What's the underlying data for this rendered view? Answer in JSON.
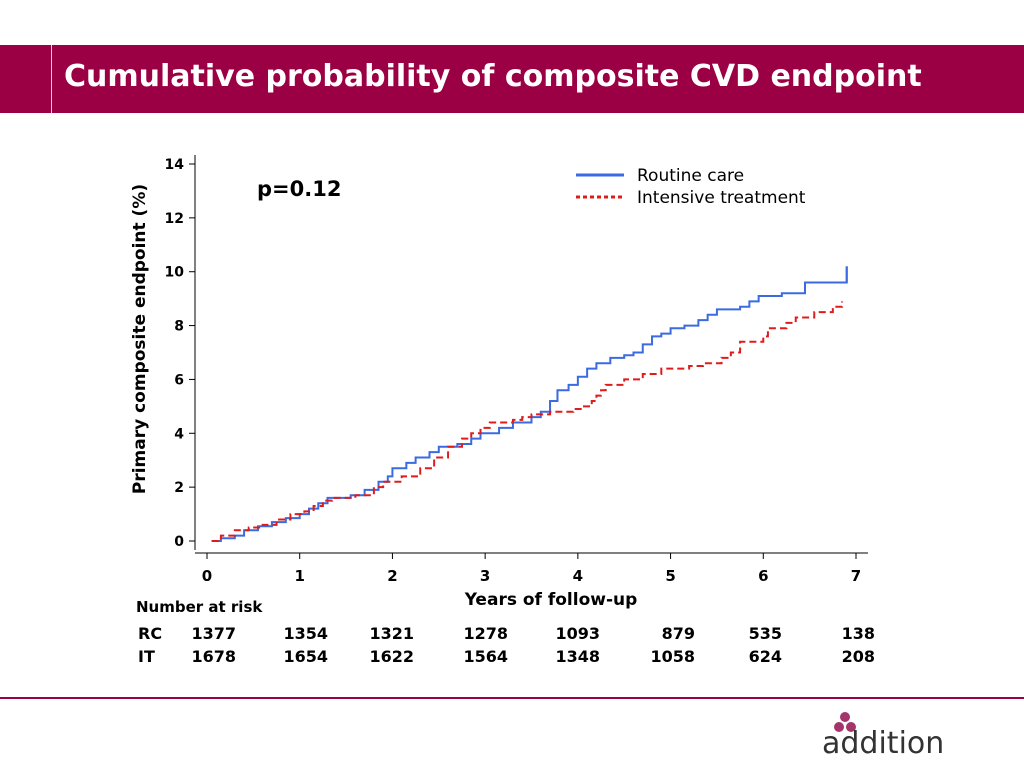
{
  "slide": {
    "title": "Cumulative probability of composite CVD endpoint"
  },
  "colors": {
    "title_bar": "#9b0045",
    "routine_care": "#3a6be0",
    "intensive_treatment": "#e01b1b",
    "logo_dots": "#a4346a"
  },
  "chart_data": {
    "type": "line",
    "subtype": "step (Kaplan-Meier cumulative incidence)",
    "xlabel": "Years of follow-up",
    "ylabel": "Primary composite endpoint (%)",
    "xlim": [
      0,
      7
    ],
    "ylim": [
      0,
      14
    ],
    "xticks": [
      0,
      1,
      2,
      3,
      4,
      5,
      6,
      7
    ],
    "yticks": [
      0,
      2,
      4,
      6,
      8,
      10,
      12,
      14
    ],
    "grid": false,
    "legend_position": "top-right",
    "annotation": "p=0.12",
    "series": [
      {
        "name": "Routine care",
        "style": "solid",
        "color": "#3a6be0",
        "points": [
          [
            0.05,
            0
          ],
          [
            0.15,
            0.1
          ],
          [
            0.3,
            0.2
          ],
          [
            0.4,
            0.4
          ],
          [
            0.55,
            0.55
          ],
          [
            0.7,
            0.7
          ],
          [
            0.85,
            0.85
          ],
          [
            1.0,
            1.0
          ],
          [
            1.1,
            1.2
          ],
          [
            1.2,
            1.4
          ],
          [
            1.3,
            1.6
          ],
          [
            1.55,
            1.7
          ],
          [
            1.7,
            1.9
          ],
          [
            1.85,
            2.2
          ],
          [
            1.95,
            2.4
          ],
          [
            2.0,
            2.7
          ],
          [
            2.15,
            2.9
          ],
          [
            2.25,
            3.1
          ],
          [
            2.4,
            3.3
          ],
          [
            2.5,
            3.5
          ],
          [
            2.7,
            3.6
          ],
          [
            2.85,
            3.8
          ],
          [
            2.95,
            4.0
          ],
          [
            3.15,
            4.2
          ],
          [
            3.3,
            4.4
          ],
          [
            3.5,
            4.6
          ],
          [
            3.6,
            4.8
          ],
          [
            3.7,
            5.2
          ],
          [
            3.78,
            5.6
          ],
          [
            3.9,
            5.8
          ],
          [
            4.0,
            6.1
          ],
          [
            4.1,
            6.4
          ],
          [
            4.2,
            6.6
          ],
          [
            4.35,
            6.8
          ],
          [
            4.5,
            6.9
          ],
          [
            4.6,
            7.0
          ],
          [
            4.7,
            7.3
          ],
          [
            4.8,
            7.6
          ],
          [
            4.9,
            7.7
          ],
          [
            5.0,
            7.9
          ],
          [
            5.15,
            8.0
          ],
          [
            5.3,
            8.2
          ],
          [
            5.4,
            8.4
          ],
          [
            5.5,
            8.6
          ],
          [
            5.75,
            8.7
          ],
          [
            5.85,
            8.9
          ],
          [
            5.95,
            9.1
          ],
          [
            6.2,
            9.2
          ],
          [
            6.45,
            9.6
          ],
          [
            6.9,
            10.2
          ]
        ]
      },
      {
        "name": "Intensive treatment",
        "style": "dashed",
        "color": "#e01b1b",
        "points": [
          [
            0.05,
            0
          ],
          [
            0.15,
            0.2
          ],
          [
            0.3,
            0.4
          ],
          [
            0.45,
            0.5
          ],
          [
            0.6,
            0.6
          ],
          [
            0.75,
            0.8
          ],
          [
            0.9,
            1.0
          ],
          [
            1.05,
            1.1
          ],
          [
            1.15,
            1.3
          ],
          [
            1.25,
            1.5
          ],
          [
            1.35,
            1.6
          ],
          [
            1.6,
            1.7
          ],
          [
            1.8,
            2.0
          ],
          [
            1.9,
            2.2
          ],
          [
            2.1,
            2.4
          ],
          [
            2.3,
            2.7
          ],
          [
            2.45,
            3.1
          ],
          [
            2.6,
            3.5
          ],
          [
            2.75,
            3.8
          ],
          [
            2.85,
            4.0
          ],
          [
            2.95,
            4.2
          ],
          [
            3.05,
            4.4
          ],
          [
            3.3,
            4.5
          ],
          [
            3.4,
            4.6
          ],
          [
            3.5,
            4.7
          ],
          [
            3.7,
            4.8
          ],
          [
            3.95,
            4.9
          ],
          [
            4.05,
            5.0
          ],
          [
            4.15,
            5.2
          ],
          [
            4.2,
            5.4
          ],
          [
            4.25,
            5.6
          ],
          [
            4.3,
            5.8
          ],
          [
            4.5,
            6.0
          ],
          [
            4.7,
            6.2
          ],
          [
            4.9,
            6.4
          ],
          [
            5.2,
            6.5
          ],
          [
            5.35,
            6.6
          ],
          [
            5.55,
            6.8
          ],
          [
            5.65,
            7.0
          ],
          [
            5.75,
            7.4
          ],
          [
            6.0,
            7.6
          ],
          [
            6.05,
            7.9
          ],
          [
            6.25,
            8.1
          ],
          [
            6.35,
            8.3
          ],
          [
            6.55,
            8.5
          ],
          [
            6.75,
            8.7
          ],
          [
            6.85,
            8.9
          ]
        ]
      }
    ]
  },
  "risk_table": {
    "title": "Number at risk",
    "rows": [
      {
        "label": "RC",
        "values": [
          "1377",
          "1354",
          "1321",
          "1278",
          "1093",
          "879",
          "535",
          "138"
        ]
      },
      {
        "label": "IT",
        "values": [
          "1678",
          "1654",
          "1622",
          "1564",
          "1348",
          "1058",
          "624",
          "208"
        ]
      }
    ]
  },
  "logo": {
    "text": "addition",
    "icon": "three-dots-logo-icon"
  }
}
